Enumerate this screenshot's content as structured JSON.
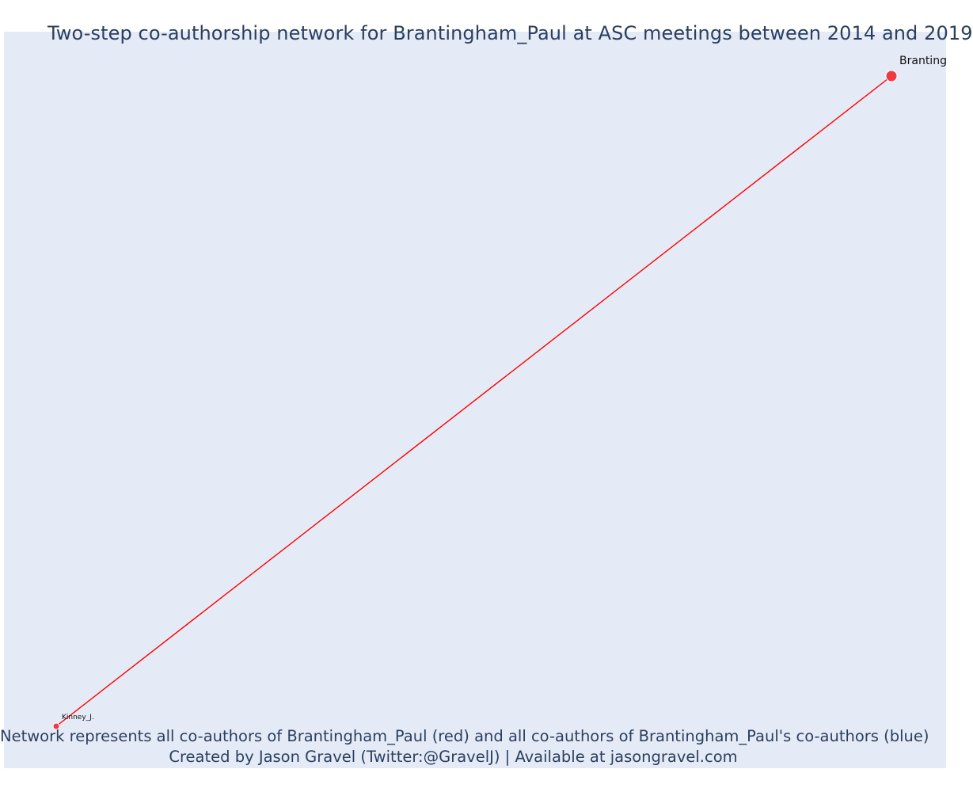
{
  "title": "Two-step co-authorship network for Brantingham_Paul at ASC meetings between 2014 and 2019",
  "caption": {
    "line1": "Network represents all co-authors of Brantingham_Paul (red) and all co-authors of Brantingham_Paul's co-authors (blue)",
    "line2": "Created by Jason Gravel (Twitter:@GravelJ) | Available at jasongravel.com"
  },
  "colors": {
    "background": "#e5ebf6",
    "title_text": "#2a3f5f",
    "focal_node": "#ef3b3f",
    "coauthor_node": "#ef3b3f",
    "edge": "#ff0000",
    "node_outline": "#ffffff"
  },
  "network": {
    "nodes": [
      {
        "id": "Brantingham_Paul",
        "label": "Branting",
        "role": "focal"
      },
      {
        "id": "Kinney_J.",
        "label": "Kinney_J.",
        "role": "coauthor"
      }
    ],
    "edges": [
      {
        "source": "Brantingham_Paul",
        "target": "Kinney_J."
      }
    ]
  }
}
